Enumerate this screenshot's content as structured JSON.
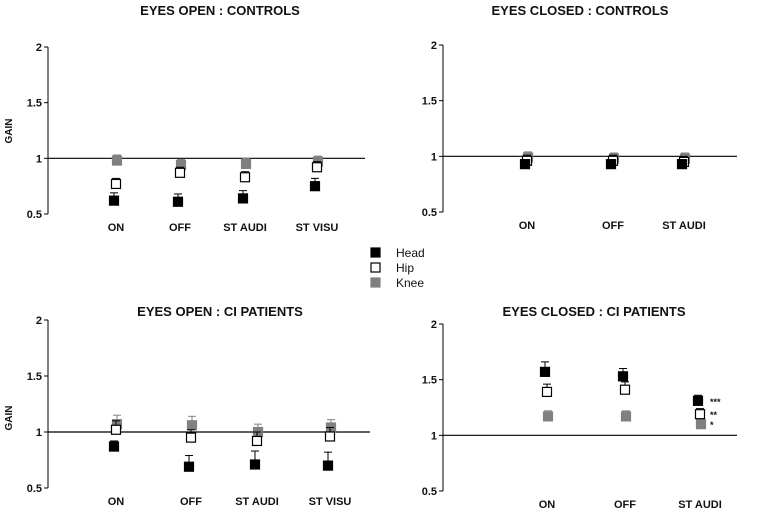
{
  "legend": [
    {
      "name": "Head",
      "color": "#000000",
      "fill": "#000000"
    },
    {
      "name": "Hip",
      "color": "#000000",
      "fill": "#ffffff"
    },
    {
      "name": "Knee",
      "color": "#808080",
      "fill": "#808080"
    }
  ],
  "chart_data": [
    {
      "type": "scatter",
      "title": "EYES OPEN : CONTROLS",
      "ylabel": "GAIN",
      "ylim": [
        0.5,
        2
      ],
      "yticks": [
        "2",
        "1.5",
        "1",
        "0.5"
      ],
      "reference_line": 1,
      "categories": [
        "ON",
        "OFF",
        "ST AUDI",
        "ST VISU"
      ],
      "series": [
        {
          "name": "Head",
          "values": [
            0.62,
            0.61,
            0.64,
            0.75
          ],
          "errors": [
            0.07,
            0.07,
            0.07,
            0.07
          ]
        },
        {
          "name": "Hip",
          "values": [
            0.77,
            0.87,
            0.83,
            0.92
          ],
          "errors": [
            0.05,
            0.05,
            0.05,
            0.05
          ]
        },
        {
          "name": "Knee",
          "values": [
            0.98,
            0.94,
            0.95,
            0.97
          ],
          "errors": [
            0.05,
            0.05,
            0.05,
            0.05
          ]
        }
      ],
      "annotations": [
        "",
        "",
        "",
        ""
      ]
    },
    {
      "type": "scatter",
      "title": "EYES CLOSED : CONTROLS",
      "ylabel": "",
      "ylim": [
        0.5,
        2
      ],
      "yticks": [
        "2",
        "1.5",
        "1",
        "0.5"
      ],
      "reference_line": 1,
      "categories": [
        "ON",
        "OFF",
        "ST AUDI"
      ],
      "series": [
        {
          "name": "Head",
          "values": [
            0.93,
            0.93,
            0.93
          ],
          "errors": [
            0.03,
            0.03,
            0.03
          ]
        },
        {
          "name": "Hip",
          "values": [
            0.96,
            0.96,
            0.95
          ],
          "errors": [
            0.05,
            0.05,
            0.05
          ]
        },
        {
          "name": "Knee",
          "values": [
            0.99,
            0.98,
            0.98
          ],
          "errors": [
            0.05,
            0.05,
            0.05
          ]
        }
      ],
      "annotations": [
        "",
        "",
        ""
      ]
    },
    {
      "type": "scatter",
      "title": "EYES OPEN : CI PATIENTS",
      "ylabel": "GAIN",
      "ylim": [
        0.5,
        2
      ],
      "yticks": [
        "2",
        "1.5",
        "1",
        "0.5"
      ],
      "reference_line": 1,
      "categories": [
        "ON",
        "OFF",
        "ST AUDI",
        "ST VISU"
      ],
      "series": [
        {
          "name": "Head",
          "values": [
            0.87,
            0.69,
            0.71,
            0.7
          ],
          "errors": [
            0.05,
            0.1,
            0.12,
            0.12
          ]
        },
        {
          "name": "Hip",
          "values": [
            1.02,
            0.95,
            0.92,
            0.96
          ],
          "errors": [
            0.08,
            0.07,
            0.08,
            0.08
          ]
        },
        {
          "name": "Knee",
          "values": [
            1.07,
            1.06,
            1.0,
            1.04
          ],
          "errors": [
            0.08,
            0.08,
            0.07,
            0.07
          ]
        }
      ],
      "annotations": [
        "",
        "",
        "",
        ""
      ]
    },
    {
      "type": "scatter",
      "title": "EYES CLOSED : CI PATIENTS",
      "ylabel": "",
      "ylim": [
        0.5,
        2
      ],
      "yticks": [
        "2",
        "1.5",
        "1",
        "0.5"
      ],
      "reference_line": 1,
      "categories": [
        "ON",
        "OFF",
        "ST AUDI"
      ],
      "series": [
        {
          "name": "Head",
          "values": [
            1.57,
            1.53,
            1.31
          ],
          "errors": [
            0.09,
            0.07,
            0.05
          ]
        },
        {
          "name": "Hip",
          "values": [
            1.39,
            1.41,
            1.19
          ],
          "errors": [
            0.07,
            0.07,
            0.05
          ]
        },
        {
          "name": "Knee",
          "values": [
            1.17,
            1.17,
            1.1
          ],
          "errors": [
            0.05,
            0.05,
            0.03
          ]
        }
      ],
      "annotations": [
        "***",
        "**",
        "*"
      ]
    }
  ]
}
